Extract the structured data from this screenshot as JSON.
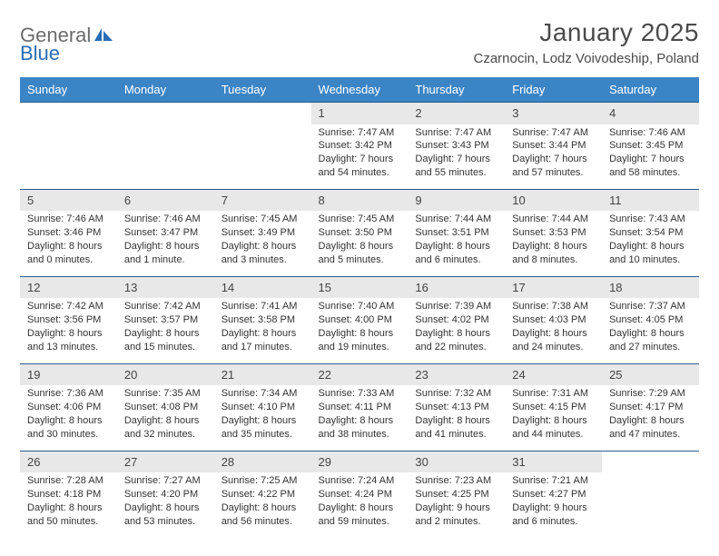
{
  "brand": {
    "part1": "General",
    "part2": "Blue"
  },
  "title": "January 2025",
  "location": "Czarnocin, Lodz Voivodeship, Poland",
  "colors": {
    "headerBg": "#3b85c6",
    "rowDivider": "#2b5c8e",
    "dayNumBg": "#e8e8e8",
    "textMuted": "#6b6b6b",
    "brandBlue": "#2a6db5"
  },
  "dayNames": [
    "Sunday",
    "Monday",
    "Tuesday",
    "Wednesday",
    "Thursday",
    "Friday",
    "Saturday"
  ],
  "weeks": [
    {
      "days": [
        {
          "blank": true
        },
        {
          "blank": true
        },
        {
          "blank": true
        },
        {
          "num": "1",
          "sunrise": "Sunrise: 7:47 AM",
          "sunset": "Sunset: 3:42 PM",
          "daylight1": "Daylight: 7 hours",
          "daylight2": "and 54 minutes."
        },
        {
          "num": "2",
          "sunrise": "Sunrise: 7:47 AM",
          "sunset": "Sunset: 3:43 PM",
          "daylight1": "Daylight: 7 hours",
          "daylight2": "and 55 minutes."
        },
        {
          "num": "3",
          "sunrise": "Sunrise: 7:47 AM",
          "sunset": "Sunset: 3:44 PM",
          "daylight1": "Daylight: 7 hours",
          "daylight2": "and 57 minutes."
        },
        {
          "num": "4",
          "sunrise": "Sunrise: 7:46 AM",
          "sunset": "Sunset: 3:45 PM",
          "daylight1": "Daylight: 7 hours",
          "daylight2": "and 58 minutes."
        }
      ]
    },
    {
      "days": [
        {
          "num": "5",
          "sunrise": "Sunrise: 7:46 AM",
          "sunset": "Sunset: 3:46 PM",
          "daylight1": "Daylight: 8 hours",
          "daylight2": "and 0 minutes."
        },
        {
          "num": "6",
          "sunrise": "Sunrise: 7:46 AM",
          "sunset": "Sunset: 3:47 PM",
          "daylight1": "Daylight: 8 hours",
          "daylight2": "and 1 minute."
        },
        {
          "num": "7",
          "sunrise": "Sunrise: 7:45 AM",
          "sunset": "Sunset: 3:49 PM",
          "daylight1": "Daylight: 8 hours",
          "daylight2": "and 3 minutes."
        },
        {
          "num": "8",
          "sunrise": "Sunrise: 7:45 AM",
          "sunset": "Sunset: 3:50 PM",
          "daylight1": "Daylight: 8 hours",
          "daylight2": "and 5 minutes."
        },
        {
          "num": "9",
          "sunrise": "Sunrise: 7:44 AM",
          "sunset": "Sunset: 3:51 PM",
          "daylight1": "Daylight: 8 hours",
          "daylight2": "and 6 minutes."
        },
        {
          "num": "10",
          "sunrise": "Sunrise: 7:44 AM",
          "sunset": "Sunset: 3:53 PM",
          "daylight1": "Daylight: 8 hours",
          "daylight2": "and 8 minutes."
        },
        {
          "num": "11",
          "sunrise": "Sunrise: 7:43 AM",
          "sunset": "Sunset: 3:54 PM",
          "daylight1": "Daylight: 8 hours",
          "daylight2": "and 10 minutes."
        }
      ]
    },
    {
      "days": [
        {
          "num": "12",
          "sunrise": "Sunrise: 7:42 AM",
          "sunset": "Sunset: 3:56 PM",
          "daylight1": "Daylight: 8 hours",
          "daylight2": "and 13 minutes."
        },
        {
          "num": "13",
          "sunrise": "Sunrise: 7:42 AM",
          "sunset": "Sunset: 3:57 PM",
          "daylight1": "Daylight: 8 hours",
          "daylight2": "and 15 minutes."
        },
        {
          "num": "14",
          "sunrise": "Sunrise: 7:41 AM",
          "sunset": "Sunset: 3:58 PM",
          "daylight1": "Daylight: 8 hours",
          "daylight2": "and 17 minutes."
        },
        {
          "num": "15",
          "sunrise": "Sunrise: 7:40 AM",
          "sunset": "Sunset: 4:00 PM",
          "daylight1": "Daylight: 8 hours",
          "daylight2": "and 19 minutes."
        },
        {
          "num": "16",
          "sunrise": "Sunrise: 7:39 AM",
          "sunset": "Sunset: 4:02 PM",
          "daylight1": "Daylight: 8 hours",
          "daylight2": "and 22 minutes."
        },
        {
          "num": "17",
          "sunrise": "Sunrise: 7:38 AM",
          "sunset": "Sunset: 4:03 PM",
          "daylight1": "Daylight: 8 hours",
          "daylight2": "and 24 minutes."
        },
        {
          "num": "18",
          "sunrise": "Sunrise: 7:37 AM",
          "sunset": "Sunset: 4:05 PM",
          "daylight1": "Daylight: 8 hours",
          "daylight2": "and 27 minutes."
        }
      ]
    },
    {
      "days": [
        {
          "num": "19",
          "sunrise": "Sunrise: 7:36 AM",
          "sunset": "Sunset: 4:06 PM",
          "daylight1": "Daylight: 8 hours",
          "daylight2": "and 30 minutes."
        },
        {
          "num": "20",
          "sunrise": "Sunrise: 7:35 AM",
          "sunset": "Sunset: 4:08 PM",
          "daylight1": "Daylight: 8 hours",
          "daylight2": "and 32 minutes."
        },
        {
          "num": "21",
          "sunrise": "Sunrise: 7:34 AM",
          "sunset": "Sunset: 4:10 PM",
          "daylight1": "Daylight: 8 hours",
          "daylight2": "and 35 minutes."
        },
        {
          "num": "22",
          "sunrise": "Sunrise: 7:33 AM",
          "sunset": "Sunset: 4:11 PM",
          "daylight1": "Daylight: 8 hours",
          "daylight2": "and 38 minutes."
        },
        {
          "num": "23",
          "sunrise": "Sunrise: 7:32 AM",
          "sunset": "Sunset: 4:13 PM",
          "daylight1": "Daylight: 8 hours",
          "daylight2": "and 41 minutes."
        },
        {
          "num": "24",
          "sunrise": "Sunrise: 7:31 AM",
          "sunset": "Sunset: 4:15 PM",
          "daylight1": "Daylight: 8 hours",
          "daylight2": "and 44 minutes."
        },
        {
          "num": "25",
          "sunrise": "Sunrise: 7:29 AM",
          "sunset": "Sunset: 4:17 PM",
          "daylight1": "Daylight: 8 hours",
          "daylight2": "and 47 minutes."
        }
      ]
    },
    {
      "days": [
        {
          "num": "26",
          "sunrise": "Sunrise: 7:28 AM",
          "sunset": "Sunset: 4:18 PM",
          "daylight1": "Daylight: 8 hours",
          "daylight2": "and 50 minutes."
        },
        {
          "num": "27",
          "sunrise": "Sunrise: 7:27 AM",
          "sunset": "Sunset: 4:20 PM",
          "daylight1": "Daylight: 8 hours",
          "daylight2": "and 53 minutes."
        },
        {
          "num": "28",
          "sunrise": "Sunrise: 7:25 AM",
          "sunset": "Sunset: 4:22 PM",
          "daylight1": "Daylight: 8 hours",
          "daylight2": "and 56 minutes."
        },
        {
          "num": "29",
          "sunrise": "Sunrise: 7:24 AM",
          "sunset": "Sunset: 4:24 PM",
          "daylight1": "Daylight: 8 hours",
          "daylight2": "and 59 minutes."
        },
        {
          "num": "30",
          "sunrise": "Sunrise: 7:23 AM",
          "sunset": "Sunset: 4:25 PM",
          "daylight1": "Daylight: 9 hours",
          "daylight2": "and 2 minutes."
        },
        {
          "num": "31",
          "sunrise": "Sunrise: 7:21 AM",
          "sunset": "Sunset: 4:27 PM",
          "daylight1": "Daylight: 9 hours",
          "daylight2": "and 6 minutes."
        },
        {
          "blank": true
        }
      ]
    }
  ]
}
